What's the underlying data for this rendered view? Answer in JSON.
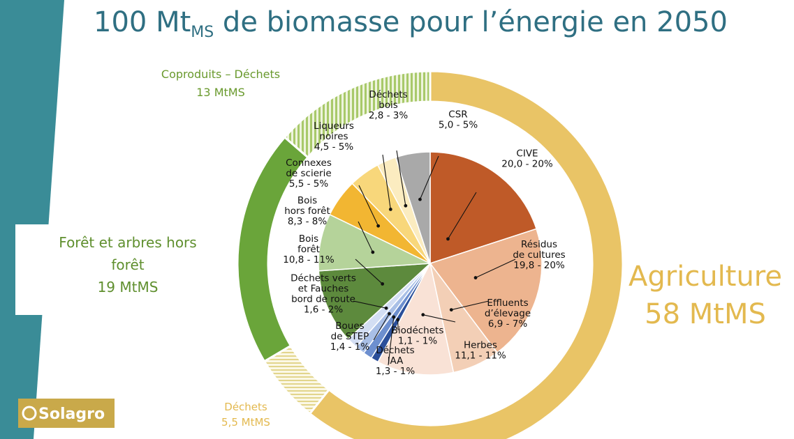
{
  "title": {
    "main": "100 Mt",
    "sub": "MS",
    "rest": " de biomasse pour l’énergie en 2050"
  },
  "logo": {
    "text": "Solagro"
  },
  "colors": {
    "teal": "#3a8c97",
    "agriculture": "#e9c466",
    "foret": "#6aa53a",
    "coproduits": "#a8c96a",
    "dechets": "#eee4a8"
  },
  "chart_data": {
    "type": "pie",
    "title": "100 MtMS de biomasse pour l’énergie en 2050",
    "groups": [
      {
        "key": "agriculture",
        "name": "Agriculture",
        "value": 58,
        "unit": "MtMS",
        "label_lines": [
          "Agriculture",
          "58 MtMS"
        ],
        "color": "#e9c466",
        "pattern": "solid"
      },
      {
        "key": "dechets",
        "name": "Déchets",
        "value": 5.5,
        "unit": "MtMS",
        "label_lines": [
          "Déchets",
          "5,5 MtMS"
        ],
        "color": "#eee4a8",
        "pattern": "hatch-h"
      },
      {
        "key": "foret",
        "name": "Forêt et arbres hors forêt",
        "value": 19,
        "unit": "MtMS",
        "label_lines": [
          "Forêt et arbres hors",
          "forêt",
          "19 MtMS"
        ],
        "color": "#6aa53a",
        "pattern": "solid"
      },
      {
        "key": "coproduits",
        "name": "Coproduits – Déchets",
        "value": 13,
        "unit": "MtMS",
        "label_lines": [
          "Coproduits – Déchets",
          "13 MtMS"
        ],
        "color": "#a8c96a",
        "pattern": "hatch-v"
      }
    ],
    "slices": [
      {
        "name": "CIVE",
        "value": 20.0,
        "label_lines": [
          "CIVE",
          "20,0 - 20%"
        ],
        "color": "#bf5a28"
      },
      {
        "name": "Résidus de cultures",
        "value": 19.8,
        "label_lines": [
          "Résidus",
          "de cultures",
          "19,8 - 20%"
        ],
        "color": "#edb48f"
      },
      {
        "name": "Effluents d’élevage",
        "value": 6.9,
        "label_lines": [
          "Effluents",
          "d’élevage",
          "6,9 - 7%"
        ],
        "color": "#f3cfb6"
      },
      {
        "name": "Herbes",
        "value": 11.1,
        "label_lines": [
          "Herbes",
          "11,1 - 11%"
        ],
        "color": "#f9e2d6"
      },
      {
        "name": "Biodéchets",
        "value": 1.1,
        "label_lines": [
          "Biodéchets",
          "1,1 - 1%"
        ],
        "color": "#2b4f9a"
      },
      {
        "name": "Déchets IAA",
        "value": 1.3,
        "label_lines": [
          "Déchets",
          "IAA",
          "1,3 - 1%"
        ],
        "color": "#6d8fcf"
      },
      {
        "name": "Boues de STEP",
        "value": 1.4,
        "label_lines": [
          "Boues",
          "de STEP",
          "1,4 - 1%"
        ],
        "color": "#a9bfe6"
      },
      {
        "name": "Déchets verts et Fauches bord de route",
        "value": 1.6,
        "label_lines": [
          "Déchets verts",
          "et Fauches",
          "bord de route",
          "1,6 - 2%"
        ],
        "color": "#d3def3"
      },
      {
        "name": "Bois forêt",
        "value": 10.8,
        "label_lines": [
          "Bois",
          "forêt",
          "10,8 - 11%"
        ],
        "color": "#5d8a3d"
      },
      {
        "name": "Bois hors forêt",
        "value": 8.3,
        "label_lines": [
          "Bois",
          "hors forêt",
          "8,3 - 8%"
        ],
        "color": "#b5d39a"
      },
      {
        "name": "Connexes de scierie",
        "value": 5.5,
        "label_lines": [
          "Connexes",
          "de scierie",
          "5,5 - 5%"
        ],
        "color": "#f2b632"
      },
      {
        "name": "Liqueurs noires",
        "value": 4.5,
        "label_lines": [
          "Liqueurs",
          "noires",
          "4,5 - 5%"
        ],
        "color": "#f8d77b"
      },
      {
        "name": "Déchets bois",
        "value": 2.8,
        "label_lines": [
          "Déchets",
          "bois",
          "2,8 - 3%"
        ],
        "color": "#fbecc0"
      },
      {
        "name": "CSR",
        "value": 5.0,
        "label_lines": [
          "CSR",
          "5,0 - 5%"
        ],
        "color": "#a9a9a9"
      }
    ]
  }
}
